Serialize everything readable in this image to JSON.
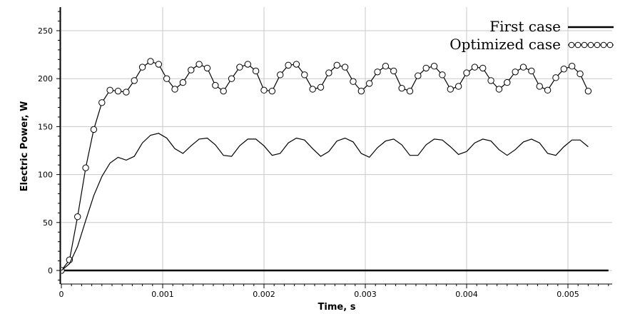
{
  "chart_data": {
    "type": "line",
    "xlabel": "Time, s",
    "ylabel": "Electric Power, W",
    "xlim": [
      0,
      0.0054
    ],
    "ylim": [
      -10,
      275
    ],
    "x_ticks": [
      0,
      0.001,
      0.002,
      0.003,
      0.004,
      0.005
    ],
    "x_tick_labels": [
      "0",
      "0.001",
      "0.002",
      "0.003",
      "0.004",
      "0.005"
    ],
    "y_ticks": [
      0,
      50,
      100,
      150,
      200,
      250
    ],
    "y_tick_labels": [
      "0",
      "50",
      "100",
      "150",
      "200",
      "250"
    ],
    "grid": true,
    "legend_position": "top-right",
    "series": [
      {
        "name": "First case",
        "style": "thick-line",
        "color": "#000000",
        "points": [
          [
            0,
            0
          ],
          [
            0.0054,
            0
          ]
        ]
      },
      {
        "name": "Optimized case",
        "style": "line-with-circle-markers",
        "color": "#000000",
        "points": [
          [
            0,
            0
          ],
          [
            8e-05,
            11
          ],
          [
            0.00016,
            56
          ],
          [
            0.00024,
            107
          ],
          [
            0.00032,
            147
          ],
          [
            0.0004,
            175
          ],
          [
            0.00048,
            188
          ],
          [
            0.00056,
            187
          ],
          [
            0.00064,
            186
          ],
          [
            0.00072,
            198
          ],
          [
            0.0008,
            212
          ],
          [
            0.00088,
            218
          ],
          [
            0.00096,
            215
          ],
          [
            0.00104,
            200
          ],
          [
            0.00112,
            189
          ],
          [
            0.0012,
            196
          ],
          [
            0.00128,
            209
          ],
          [
            0.00136,
            215
          ],
          [
            0.00144,
            211
          ],
          [
            0.00152,
            193
          ],
          [
            0.0016,
            187
          ],
          [
            0.00168,
            200
          ],
          [
            0.00176,
            212
          ],
          [
            0.00184,
            215
          ],
          [
            0.00192,
            208
          ],
          [
            0.002,
            188
          ],
          [
            0.00208,
            187
          ],
          [
            0.00216,
            204
          ],
          [
            0.00224,
            214
          ],
          [
            0.00232,
            215
          ],
          [
            0.0024,
            204
          ],
          [
            0.00248,
            189
          ],
          [
            0.00256,
            191
          ],
          [
            0.00264,
            206
          ],
          [
            0.00272,
            214
          ],
          [
            0.0028,
            212
          ],
          [
            0.00288,
            197
          ],
          [
            0.00296,
            187
          ],
          [
            0.00304,
            195
          ],
          [
            0.00312,
            207
          ],
          [
            0.0032,
            213
          ],
          [
            0.00328,
            208
          ],
          [
            0.00336,
            190
          ],
          [
            0.00344,
            187
          ],
          [
            0.00352,
            203
          ],
          [
            0.0036,
            211
          ],
          [
            0.00368,
            213
          ],
          [
            0.00376,
            204
          ],
          [
            0.00384,
            189
          ],
          [
            0.00392,
            192
          ],
          [
            0.004,
            206
          ],
          [
            0.00408,
            212
          ],
          [
            0.00416,
            211
          ],
          [
            0.00424,
            198
          ],
          [
            0.00432,
            189
          ],
          [
            0.0044,
            196
          ],
          [
            0.00448,
            207
          ],
          [
            0.00456,
            212
          ],
          [
            0.00464,
            208
          ],
          [
            0.00472,
            192
          ],
          [
            0.0048,
            188
          ],
          [
            0.00488,
            201
          ],
          [
            0.00496,
            210
          ],
          [
            0.00504,
            213
          ],
          [
            0.00512,
            205
          ],
          [
            0.0052,
            187
          ]
        ]
      },
      {
        "name": "",
        "style": "thin-line",
        "color": "#000000",
        "points": [
          [
            0,
            0
          ],
          [
            8e-05,
            7
          ],
          [
            0.00016,
            25
          ],
          [
            0.00024,
            52
          ],
          [
            0.00032,
            78
          ],
          [
            0.0004,
            98
          ],
          [
            0.00048,
            112
          ],
          [
            0.00056,
            118
          ],
          [
            0.00064,
            115
          ],
          [
            0.00072,
            119
          ],
          [
            0.0008,
            133
          ],
          [
            0.00088,
            141
          ],
          [
            0.00096,
            143
          ],
          [
            0.00104,
            138
          ],
          [
            0.00112,
            127
          ],
          [
            0.0012,
            122
          ],
          [
            0.00128,
            130
          ],
          [
            0.00136,
            137
          ],
          [
            0.00144,
            138
          ],
          [
            0.00152,
            131
          ],
          [
            0.0016,
            120
          ],
          [
            0.00168,
            119
          ],
          [
            0.00176,
            130
          ],
          [
            0.00184,
            137
          ],
          [
            0.00192,
            137
          ],
          [
            0.002,
            130
          ],
          [
            0.00208,
            120
          ],
          [
            0.00216,
            122
          ],
          [
            0.00224,
            133
          ],
          [
            0.00232,
            138
          ],
          [
            0.0024,
            136
          ],
          [
            0.00248,
            127
          ],
          [
            0.00256,
            119
          ],
          [
            0.00264,
            124
          ],
          [
            0.00272,
            135
          ],
          [
            0.0028,
            138
          ],
          [
            0.00288,
            134
          ],
          [
            0.00296,
            122
          ],
          [
            0.00304,
            118
          ],
          [
            0.00312,
            128
          ],
          [
            0.0032,
            135
          ],
          [
            0.00328,
            137
          ],
          [
            0.00336,
            131
          ],
          [
            0.00344,
            120
          ],
          [
            0.00352,
            120
          ],
          [
            0.0036,
            131
          ],
          [
            0.00368,
            137
          ],
          [
            0.00376,
            136
          ],
          [
            0.00384,
            129
          ],
          [
            0.00392,
            121
          ],
          [
            0.004,
            124
          ],
          [
            0.00408,
            133
          ],
          [
            0.00416,
            137
          ],
          [
            0.00424,
            135
          ],
          [
            0.00432,
            126
          ],
          [
            0.0044,
            120
          ],
          [
            0.00448,
            126
          ],
          [
            0.00456,
            134
          ],
          [
            0.00464,
            137
          ],
          [
            0.00472,
            133
          ],
          [
            0.0048,
            122
          ],
          [
            0.00488,
            120
          ],
          [
            0.00496,
            129
          ],
          [
            0.00504,
            136
          ],
          [
            0.00512,
            136
          ],
          [
            0.0052,
            129
          ]
        ]
      }
    ]
  }
}
